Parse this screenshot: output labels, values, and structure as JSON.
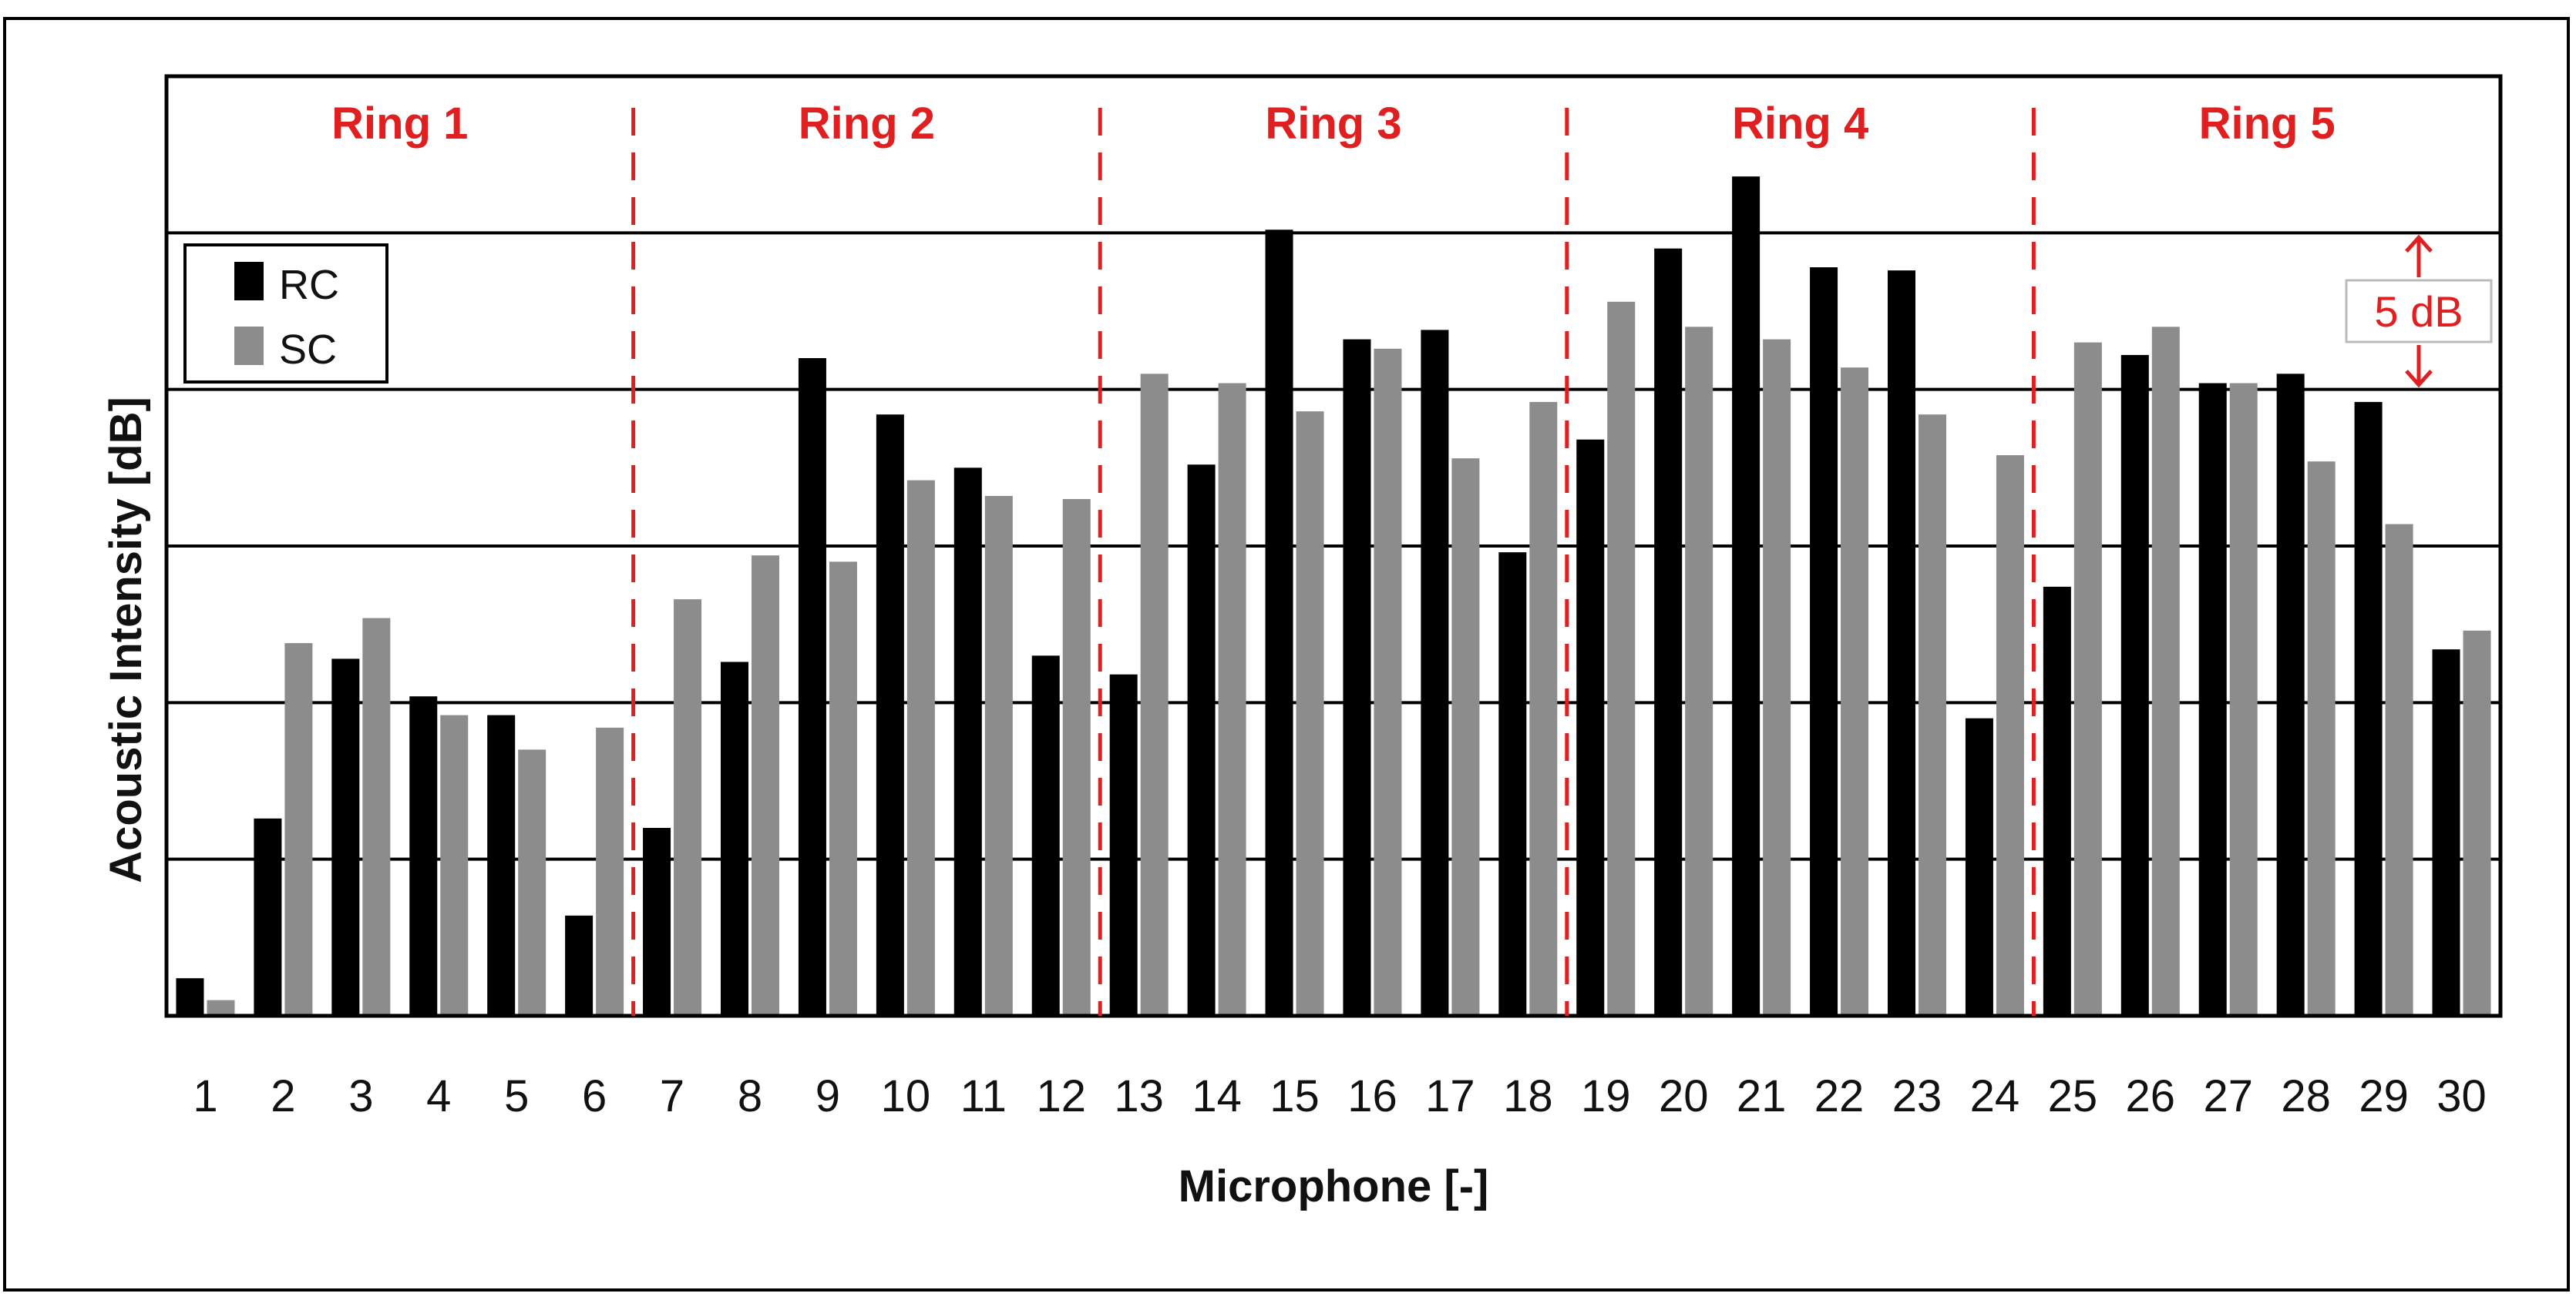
{
  "chart_data": {
    "type": "bar",
    "xlabel": "Microphone [-]",
    "ylabel": "Acoustic Intensity [dB]",
    "categories": [
      "1",
      "2",
      "3",
      "4",
      "5",
      "6",
      "7",
      "8",
      "9",
      "10",
      "11",
      "12",
      "13",
      "14",
      "15",
      "16",
      "17",
      "18",
      "19",
      "20",
      "21",
      "22",
      "23",
      "24",
      "25",
      "26",
      "27",
      "28",
      "29",
      "30"
    ],
    "series": [
      {
        "name": "RC",
        "color": "#000000",
        "values": [
          1.2,
          6.3,
          11.4,
          10.2,
          9.6,
          3.2,
          6.0,
          11.3,
          21.0,
          19.2,
          17.5,
          11.5,
          10.9,
          17.6,
          25.1,
          21.6,
          21.9,
          14.8,
          18.4,
          24.5,
          26.8,
          23.9,
          23.8,
          9.5,
          13.7,
          21.1,
          20.2,
          20.5,
          19.6,
          11.7
        ]
      },
      {
        "name": "SC",
        "color": "#8c8c8c",
        "values": [
          0.5,
          11.9,
          12.7,
          9.6,
          8.5,
          9.2,
          13.3,
          14.7,
          14.5,
          17.1,
          16.6,
          16.5,
          20.5,
          20.2,
          19.3,
          21.3,
          17.8,
          19.6,
          22.8,
          22.0,
          21.6,
          20.7,
          19.2,
          17.9,
          21.5,
          22.0,
          20.2,
          17.7,
          15.7,
          12.3
        ]
      }
    ],
    "ylim": [
      0,
      30
    ],
    "grid": "horizontal",
    "grid_step": 5,
    "legend": {
      "position": "top-left",
      "entries": [
        "RC",
        "SC"
      ]
    },
    "rings": [
      {
        "label": "Ring 1",
        "start": 1,
        "end": 6
      },
      {
        "label": "Ring 2",
        "start": 7,
        "end": 12
      },
      {
        "label": "Ring 3",
        "start": 13,
        "end": 18
      },
      {
        "label": "Ring 4",
        "start": 19,
        "end": 24
      },
      {
        "label": "Ring 5",
        "start": 25,
        "end": 30
      }
    ],
    "ring_color": "#e02020",
    "scale_annotation": "5 dB"
  }
}
